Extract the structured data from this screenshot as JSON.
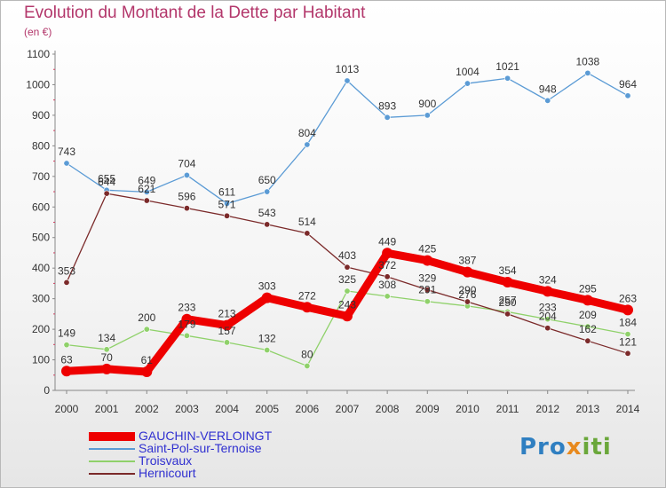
{
  "chart_data": {
    "type": "line",
    "title": "Evolution du Montant de la Dette par Habitant",
    "subtitle": "(en €)",
    "x": [
      "2000",
      "2001",
      "2002",
      "2003",
      "2004",
      "2005",
      "2006",
      "2007",
      "2008",
      "2009",
      "2010",
      "2011",
      "2012",
      "2013",
      "2014"
    ],
    "ylim": [
      0,
      1100
    ],
    "yticks": [
      0,
      100,
      200,
      300,
      400,
      500,
      600,
      700,
      800,
      900,
      1000,
      1100
    ],
    "grid": false,
    "legend_position": "bottom-left",
    "series": [
      {
        "name": "GAUCHIN-VERLOINGT",
        "color": "#ee0000",
        "values": [
          63,
          70,
          61,
          233,
          213,
          303,
          272,
          243,
          449,
          425,
          387,
          354,
          324,
          295,
          263
        ]
      },
      {
        "name": "Saint-Pol-sur-Ternoise",
        "color": "#5b9bd5",
        "values": [
          743,
          655,
          649,
          704,
          611,
          650,
          804,
          1013,
          893,
          900,
          1004,
          1021,
          948,
          1038,
          964
        ]
      },
      {
        "name": "Troisvaux",
        "color": "#8fd16a",
        "values": [
          149,
          134,
          200,
          179,
          157,
          132,
          80,
          325,
          308,
          291,
          276,
          257,
          233,
          209,
          184
        ]
      },
      {
        "name": "Hernicourt",
        "color": "#7b2a2a",
        "values": [
          353,
          644,
          621,
          596,
          571,
          543,
          514,
          403,
          372,
          329,
          290,
          250,
          204,
          162,
          121
        ]
      }
    ]
  },
  "logo": {
    "part1": "Pro",
    "part2": "x",
    "part3": "iti"
  }
}
